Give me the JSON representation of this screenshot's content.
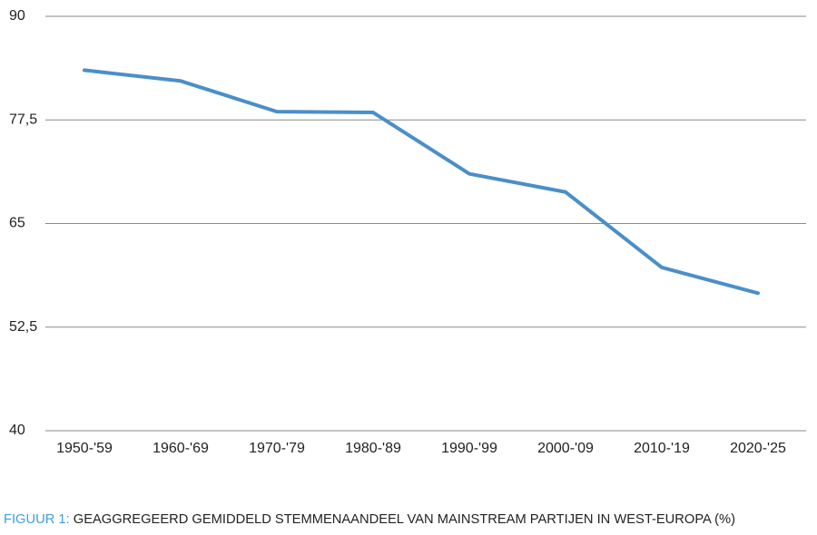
{
  "chart_data": {
    "type": "line",
    "caption_label": "FIGUUR 1:",
    "title": "GEAGGREGEERD GEMIDDELD STEMMENAANDEEL VAN MAINSTREAM PARTIJEN IN WEST-EUROPA (%)",
    "categories": [
      "1950-'59",
      "1960-'69",
      "1970-'79",
      "1980-'89",
      "1990-'99",
      "2000-'09",
      "2010-'19",
      "2020-'25"
    ],
    "values": [
      83.5,
      82.2,
      78.5,
      78.4,
      71.0,
      68.8,
      59.7,
      56.6
    ],
    "color": "#4a8fc9",
    "caption_label_color": "#3f9fd6",
    "ylim": [
      40,
      90
    ],
    "yticks": [
      40,
      {
        "value": 52.5,
        "label": "52,5"
      },
      65,
      {
        "value": 77.5,
        "label": "77,5"
      },
      90
    ],
    "grid": true
  }
}
